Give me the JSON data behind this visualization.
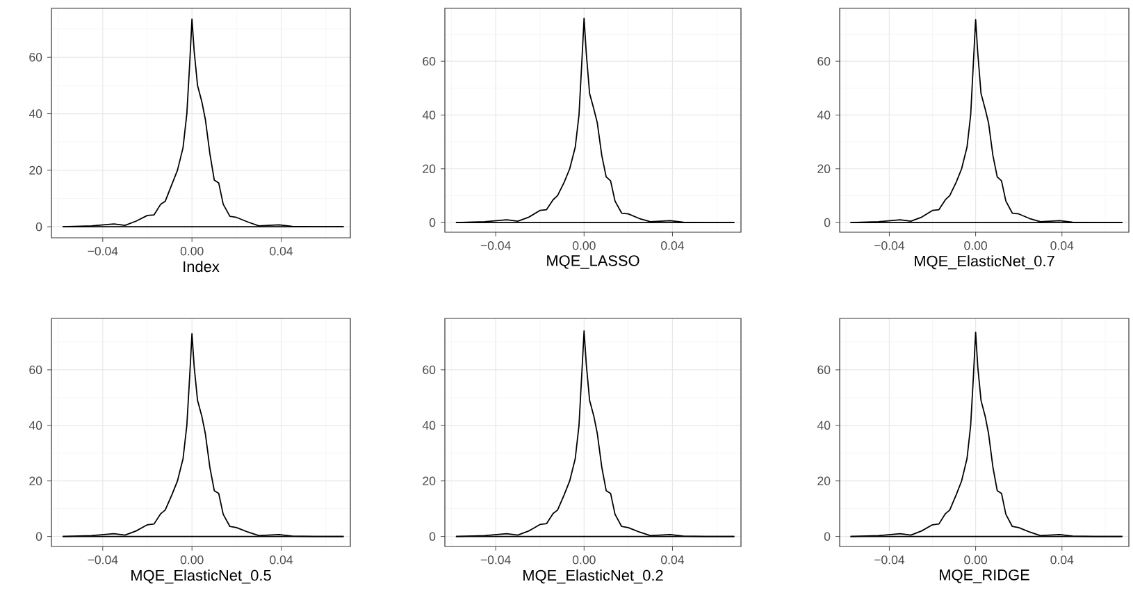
{
  "chart_data": [
    {
      "type": "line",
      "xlabel": "Index",
      "xlim": [
        -0.063,
        0.071
      ],
      "ylim": [
        -3.9,
        77.3
      ],
      "grid": true,
      "xticks": [
        {
          "value": -0.04,
          "label": "−0.04"
        },
        {
          "value": 0,
          "label": "0.00"
        },
        {
          "value": 0.04,
          "label": "0.04"
        }
      ],
      "yticks": [
        0,
        20,
        40,
        60
      ],
      "ref_lines": [
        {
          "axis": "y",
          "value": 0,
          "color": "#000000"
        }
      ],
      "series": [
        {
          "color": "#000000",
          "x": [
            -0.058,
            -0.045,
            -0.035,
            -0.03,
            -0.025,
            -0.02,
            -0.017,
            -0.014,
            -0.012,
            -0.009,
            -0.0065,
            -0.004,
            -0.0023,
            -0.001,
            0,
            0.001,
            0.0025,
            0.0045,
            0.006,
            0.008,
            0.01,
            0.012,
            0.014,
            0.017,
            0.02,
            0.025,
            0.03,
            0.039,
            0.045,
            0.055,
            0.068
          ],
          "values": [
            0,
            0.3,
            1,
            0.5,
            2,
            4,
            4.2,
            8,
            9,
            15,
            20,
            28,
            40,
            58,
            73.5,
            62,
            50,
            44,
            38,
            26,
            16.5,
            15.5,
            8,
            3.7,
            3.3,
            1.7,
            0.3,
            0.7,
            0.1,
            0,
            0
          ]
        }
      ]
    },
    {
      "type": "line",
      "xlabel": "MQE_LASSO",
      "xlim": [
        -0.063,
        0.071
      ],
      "ylim": [
        -3.6,
        79.7
      ],
      "grid": true,
      "xticks": [
        {
          "value": -0.04,
          "label": "−0.04"
        },
        {
          "value": 0,
          "label": "0.00"
        },
        {
          "value": 0.04,
          "label": "0.04"
        }
      ],
      "yticks": [
        0,
        20,
        40,
        60
      ],
      "ref_lines": [
        {
          "axis": "y",
          "value": 0,
          "color": "#000000"
        }
      ],
      "series": [
        {
          "color": "#000000",
          "x": [
            -0.058,
            -0.045,
            -0.035,
            -0.03,
            -0.025,
            -0.02,
            -0.017,
            -0.014,
            -0.012,
            -0.009,
            -0.0065,
            -0.004,
            -0.0023,
            -0.001,
            0,
            0.001,
            0.0025,
            0.0045,
            0.006,
            0.008,
            0.01,
            0.012,
            0.014,
            0.017,
            0.02,
            0.025,
            0.03,
            0.039,
            0.045,
            0.055,
            0.068
          ],
          "values": [
            0,
            0.3,
            1,
            0.5,
            2,
            4.5,
            4.8,
            8.5,
            10,
            15,
            20,
            28,
            40,
            60,
            76,
            63,
            48,
            42,
            37,
            25,
            17,
            15.5,
            8,
            3.5,
            3.2,
            1.5,
            0.3,
            0.7,
            0.1,
            0,
            0
          ]
        }
      ]
    },
    {
      "type": "line",
      "xlabel": "MQE_ElasticNet_0.7",
      "xlim": [
        -0.063,
        0.071
      ],
      "ylim": [
        -3.6,
        79.7
      ],
      "grid": true,
      "xticks": [
        {
          "value": -0.04,
          "label": "−0.04"
        },
        {
          "value": 0,
          "label": "0.00"
        },
        {
          "value": 0.04,
          "label": "0.04"
        }
      ],
      "yticks": [
        0,
        20,
        40,
        60
      ],
      "ref_lines": [
        {
          "axis": "y",
          "value": 0,
          "color": "#000000"
        }
      ],
      "series": [
        {
          "color": "#000000",
          "x": [
            -0.058,
            -0.045,
            -0.035,
            -0.03,
            -0.025,
            -0.02,
            -0.017,
            -0.014,
            -0.012,
            -0.009,
            -0.0065,
            -0.004,
            -0.0023,
            -0.001,
            0,
            0.001,
            0.0025,
            0.0045,
            0.006,
            0.008,
            0.01,
            0.012,
            0.014,
            0.017,
            0.02,
            0.025,
            0.03,
            0.039,
            0.045,
            0.055,
            0.068
          ],
          "values": [
            0,
            0.3,
            1,
            0.5,
            2,
            4.5,
            4.8,
            8.5,
            10,
            15,
            20,
            28,
            40,
            60,
            75.5,
            63,
            48,
            42,
            37,
            25,
            17,
            15.5,
            8,
            3.5,
            3.2,
            1.5,
            0.3,
            0.7,
            0.1,
            0,
            0
          ]
        }
      ]
    },
    {
      "type": "line",
      "xlabel": "MQE_ElasticNet_0.5",
      "xlim": [
        -0.063,
        0.071
      ],
      "ylim": [
        -3.6,
        78.5
      ],
      "grid": true,
      "xticks": [
        {
          "value": -0.04,
          "label": "−0.04"
        },
        {
          "value": 0,
          "label": "0.00"
        },
        {
          "value": 0.04,
          "label": "0.04"
        }
      ],
      "yticks": [
        0,
        20,
        40,
        60
      ],
      "ref_lines": [
        {
          "axis": "y",
          "value": 0,
          "color": "#000000"
        }
      ],
      "series": [
        {
          "color": "#000000",
          "x": [
            -0.058,
            -0.045,
            -0.035,
            -0.03,
            -0.025,
            -0.02,
            -0.017,
            -0.014,
            -0.012,
            -0.009,
            -0.0065,
            -0.004,
            -0.0023,
            -0.001,
            0,
            0.001,
            0.0025,
            0.0045,
            0.006,
            0.008,
            0.01,
            0.012,
            0.014,
            0.017,
            0.02,
            0.025,
            0.03,
            0.039,
            0.045,
            0.055,
            0.068
          ],
          "values": [
            0,
            0.3,
            1,
            0.5,
            2,
            4.2,
            4.5,
            8.2,
            9.5,
            15,
            20,
            28,
            40,
            58,
            73,
            61,
            49,
            43,
            37,
            25,
            16.5,
            15.5,
            8,
            3.6,
            3.2,
            1.6,
            0.3,
            0.7,
            0.1,
            0,
            0
          ]
        }
      ]
    },
    {
      "type": "line",
      "xlabel": "MQE_ElasticNet_0.2",
      "xlim": [
        -0.063,
        0.071
      ],
      "ylim": [
        -3.6,
        78.5
      ],
      "grid": true,
      "xticks": [
        {
          "value": -0.04,
          "label": "−0.04"
        },
        {
          "value": 0,
          "label": "0.00"
        },
        {
          "value": 0.04,
          "label": "0.04"
        }
      ],
      "yticks": [
        0,
        20,
        40,
        60
      ],
      "ref_lines": [
        {
          "axis": "y",
          "value": 0,
          "color": "#000000"
        }
      ],
      "series": [
        {
          "color": "#000000",
          "x": [
            -0.058,
            -0.045,
            -0.035,
            -0.03,
            -0.025,
            -0.02,
            -0.017,
            -0.014,
            -0.012,
            -0.009,
            -0.0065,
            -0.004,
            -0.0023,
            -0.001,
            0,
            0.001,
            0.0025,
            0.0045,
            0.006,
            0.008,
            0.01,
            0.012,
            0.014,
            0.017,
            0.02,
            0.025,
            0.03,
            0.039,
            0.045,
            0.055,
            0.068
          ],
          "values": [
            0,
            0.3,
            1,
            0.5,
            2,
            4.3,
            4.6,
            8.3,
            9.5,
            15,
            20,
            28,
            40,
            59,
            74,
            62,
            49,
            43,
            37,
            25,
            16.5,
            15.5,
            8,
            3.6,
            3.2,
            1.6,
            0.3,
            0.7,
            0.1,
            0,
            0
          ]
        }
      ]
    },
    {
      "type": "line",
      "xlabel": "MQE_RIDGE",
      "xlim": [
        -0.063,
        0.071
      ],
      "ylim": [
        -3.6,
        78.5
      ],
      "grid": true,
      "xticks": [
        {
          "value": -0.04,
          "label": "−0.04"
        },
        {
          "value": 0,
          "label": "0.00"
        },
        {
          "value": 0.04,
          "label": "0.04"
        }
      ],
      "yticks": [
        0,
        20,
        40,
        60
      ],
      "ref_lines": [
        {
          "axis": "y",
          "value": 0,
          "color": "#000000"
        }
      ],
      "series": [
        {
          "color": "#000000",
          "x": [
            -0.058,
            -0.045,
            -0.035,
            -0.03,
            -0.025,
            -0.02,
            -0.017,
            -0.014,
            -0.012,
            -0.009,
            -0.0065,
            -0.004,
            -0.0023,
            -0.001,
            0,
            0.001,
            0.0025,
            0.0045,
            0.006,
            0.008,
            0.01,
            0.012,
            0.014,
            0.017,
            0.02,
            0.025,
            0.03,
            0.039,
            0.045,
            0.055,
            0.068
          ],
          "values": [
            0,
            0.3,
            1,
            0.5,
            2,
            4.2,
            4.5,
            8.2,
            9.5,
            15,
            20,
            28,
            40,
            58,
            73.5,
            61,
            49,
            43,
            37,
            25,
            16.5,
            15.5,
            8,
            3.6,
            3.2,
            1.6,
            0.3,
            0.7,
            0.1,
            0,
            0
          ]
        }
      ]
    }
  ]
}
